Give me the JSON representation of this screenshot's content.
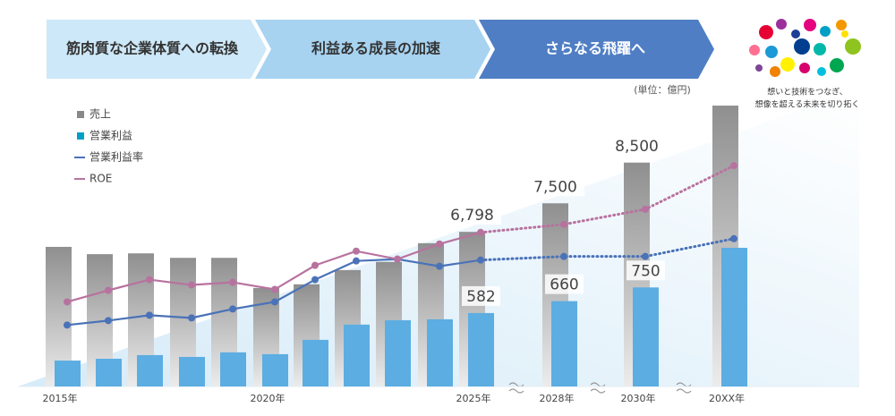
{
  "header": {
    "steps": [
      "筋肉質な企業体質への転換",
      "利益ある成長の加速",
      "さらなる飛躍へ"
    ]
  },
  "unit": "(単位：億円)",
  "logo": {
    "tagline": [
      "想いと技術をつなぎ、",
      "想像を超える未来を切り拓く"
    ]
  },
  "chart_data": {
    "type": "bar",
    "categories": [
      "2015年",
      null,
      null,
      null,
      null,
      "2020年",
      null,
      null,
      null,
      null,
      "2025年",
      "2028年",
      "2030年",
      "20XX年"
    ],
    "forecast_start": 10,
    "ylim": [
      3000,
      10000
    ],
    "y2lim": [
      100,
      1970
    ],
    "y3lim": [
      0,
      32
    ],
    "series": [
      {
        "name": "売上",
        "type": "bar",
        "color": "#9c9c9c",
        "values": [
          6430,
          6250,
          6270,
          6160,
          6160,
          5420,
          5510,
          5860,
          6060,
          6520,
          6798,
          7500,
          8500,
          9900
        ],
        "value_labels": [
          null,
          null,
          null,
          null,
          null,
          null,
          null,
          null,
          null,
          null,
          "6,798",
          "7,500",
          "8,500",
          null
        ]
      },
      {
        "name": "営業利益",
        "type": "bar",
        "axis": "y2",
        "color": "#5cade2",
        "values": [
          270,
          282,
          306,
          294,
          324,
          312,
          406,
          506,
          535,
          541,
          582,
          660,
          750,
          1010
        ],
        "value_labels": [
          null,
          null,
          null,
          null,
          null,
          null,
          null,
          null,
          null,
          null,
          "582",
          "660",
          "750",
          null
        ]
      },
      {
        "name": "営業利益率",
        "type": "line",
        "axis": "y3",
        "color": "#4a72b8",
        "values": [
          6.9,
          7.4,
          8.0,
          7.7,
          8.7,
          9.5,
          12.0,
          14.1,
          14.3,
          13.5,
          14.2,
          14.6,
          14.6,
          16.6
        ]
      },
      {
        "name": "ROE",
        "type": "line",
        "axis": "y3",
        "color": "#b8729f",
        "values": [
          9.5,
          10.8,
          12.0,
          11.4,
          11.7,
          10.9,
          13.6,
          15.2,
          14.3,
          16.0,
          17.3,
          18.2,
          19.9,
          24.8
        ]
      }
    ]
  }
}
